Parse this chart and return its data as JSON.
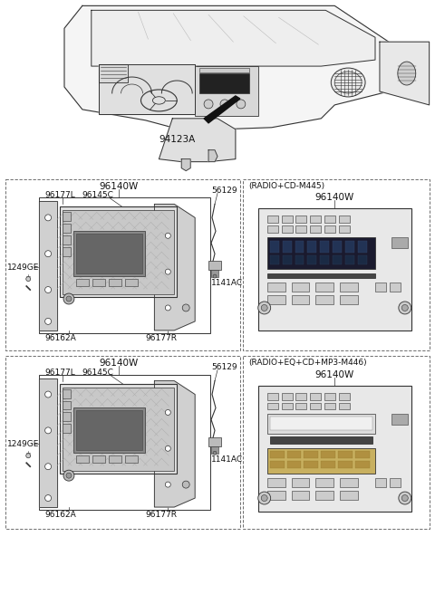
{
  "bg_color": "#ffffff",
  "line_color": "#333333",
  "dash_color": "#666666",
  "font_family": "DejaVu Sans",
  "fs_tiny": 5.5,
  "fs_small": 6.5,
  "fs_med": 7.5,
  "top_label": "94123A",
  "s1_main_label": "96140W",
  "s1_right_title": "(RADIO+CD-M445)",
  "s1_right_label": "96140W",
  "s2_main_label": "96140W",
  "s2_right_title": "(RADIO+EQ+CD+MP3-M446)",
  "s2_right_label": "96140W",
  "label_96177L": "96177L",
  "label_96145C": "96145C",
  "label_56129": "56129",
  "label_1249GE": "1249GE",
  "label_96162A": "96162A",
  "label_96177R": "96177R",
  "label_1141AC": "1141AC"
}
